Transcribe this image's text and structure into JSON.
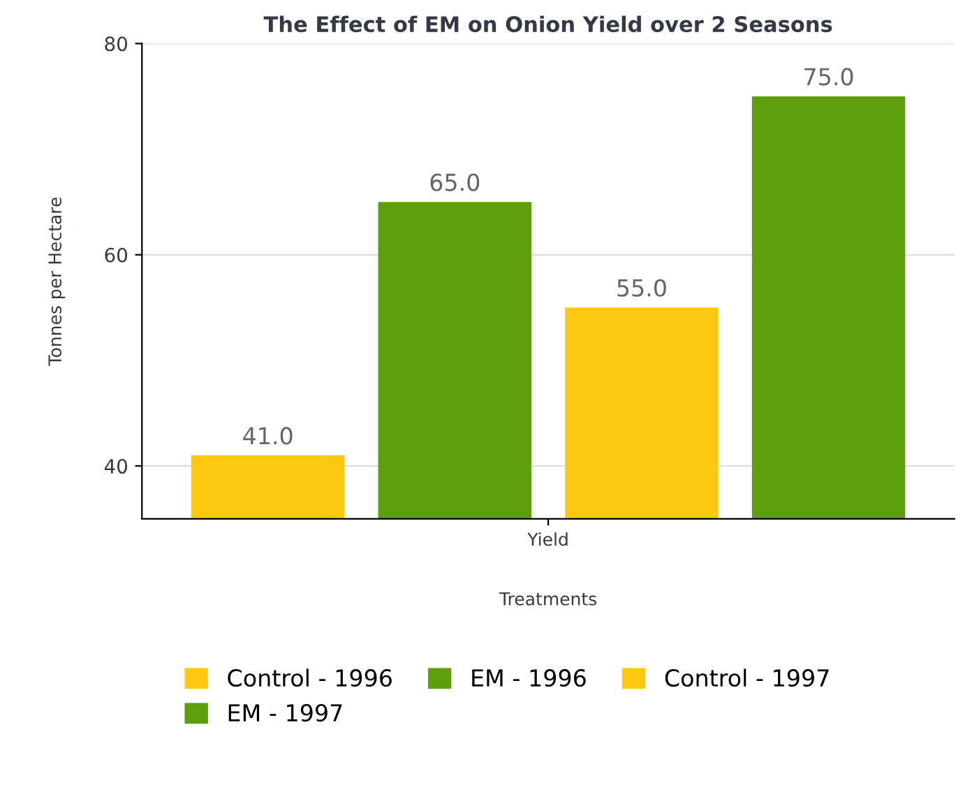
{
  "chart_data": {
    "type": "bar",
    "title": "The Effect of EM on Onion Yield over 2 Seasons",
    "xlabel": "Treatments",
    "ylabel": "Tonnes per Hectare",
    "categories": [
      "Yield"
    ],
    "series": [
      {
        "name": "Control - 1996",
        "color": "#fcc812",
        "values": [
          41
        ],
        "value_labels": [
          "41.0"
        ]
      },
      {
        "name": "EM - 1996",
        "color": "#5c9e0b",
        "values": [
          65
        ],
        "value_labels": [
          "65.0"
        ]
      },
      {
        "name": "Control - 1997",
        "color": "#fcc812",
        "values": [
          55
        ],
        "value_labels": [
          "55.0"
        ]
      },
      {
        "name": "EM - 1997",
        "color": "#5c9e0b",
        "values": [
          75
        ],
        "value_labels": [
          "75.0"
        ]
      }
    ],
    "ylim": [
      35,
      80
    ],
    "yticks": [
      40,
      60,
      80
    ],
    "grid": "y",
    "legend": "bottom"
  }
}
